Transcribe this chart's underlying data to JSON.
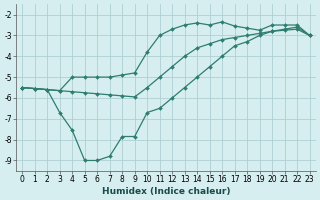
{
  "xlabel": "Humidex (Indice chaleur)",
  "bg_color": "#d6eef0",
  "grid_color": "#aecfd4",
  "line_color": "#2e7d6e",
  "xlim": [
    -0.5,
    23.5
  ],
  "ylim": [
    -9.5,
    -1.5
  ],
  "xticks": [
    0,
    1,
    2,
    3,
    4,
    5,
    6,
    7,
    8,
    9,
    10,
    11,
    12,
    13,
    14,
    15,
    16,
    17,
    18,
    19,
    20,
    21,
    22,
    23
  ],
  "yticks": [
    -9,
    -8,
    -7,
    -6,
    -5,
    -4,
    -3,
    -2
  ],
  "line1_x": [
    0,
    1,
    2,
    3,
    4,
    5,
    6,
    7,
    8,
    9,
    10,
    11,
    12,
    13,
    14,
    15,
    16,
    17,
    18,
    19,
    20,
    21,
    22,
    23
  ],
  "line1_y": [
    -5.5,
    -5.55,
    -5.6,
    -5.65,
    -5.7,
    -5.75,
    -5.8,
    -5.85,
    -5.9,
    -5.95,
    -5.5,
    -5.0,
    -4.5,
    -4.0,
    -3.6,
    -3.4,
    -3.2,
    -3.1,
    -3.0,
    -2.9,
    -2.8,
    -2.75,
    -2.7,
    -3.0
  ],
  "line2_x": [
    0,
    1,
    2,
    3,
    4,
    5,
    6,
    7,
    8,
    9,
    10,
    11,
    12,
    13,
    14,
    15,
    16,
    17,
    18,
    19,
    20,
    21,
    22,
    23
  ],
  "line2_y": [
    -5.5,
    -5.55,
    -5.6,
    -5.65,
    -5.0,
    -5.0,
    -5.0,
    -5.0,
    -4.9,
    -4.8,
    -3.8,
    -3.0,
    -2.7,
    -2.5,
    -2.4,
    -2.5,
    -2.35,
    -2.55,
    -2.65,
    -2.75,
    -2.5,
    -2.5,
    -2.5,
    -3.0
  ],
  "line3_x": [
    0,
    1,
    2,
    3,
    4,
    5,
    6,
    7,
    8,
    9,
    10,
    11,
    12,
    13,
    14,
    15,
    16,
    17,
    18,
    19,
    20,
    21,
    22,
    23
  ],
  "line3_y": [
    -5.5,
    -5.55,
    -5.6,
    -6.7,
    -7.55,
    -9.0,
    -9.0,
    -8.8,
    -7.85,
    -7.85,
    -6.7,
    -6.5,
    -6.0,
    -5.5,
    -5.0,
    -4.5,
    -4.0,
    -3.5,
    -3.3,
    -3.0,
    -2.8,
    -2.7,
    -2.6,
    -3.0
  ]
}
